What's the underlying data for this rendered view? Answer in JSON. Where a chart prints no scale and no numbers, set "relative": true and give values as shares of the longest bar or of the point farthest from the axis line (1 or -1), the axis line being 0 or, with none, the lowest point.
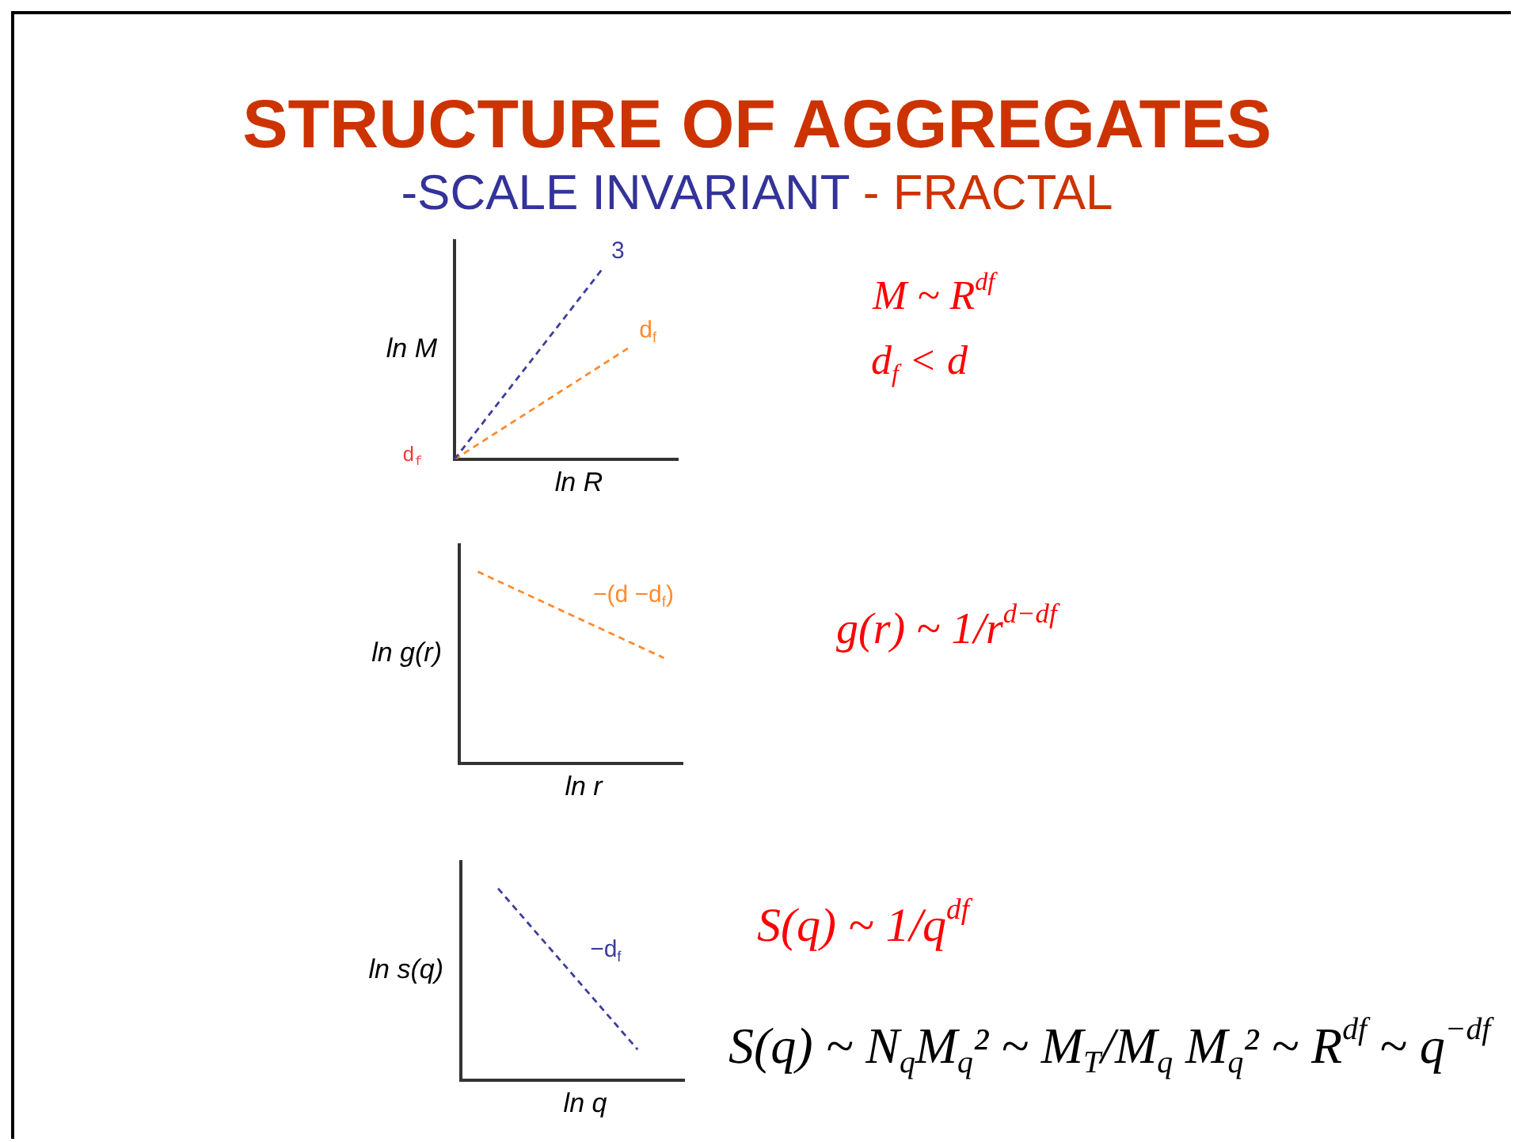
{
  "chart_data": [
    {
      "type": "line",
      "title": "STRUCTURE OF AGGREGATES",
      "subtitle": "-SCALE INVARIANT - FRACTAL",
      "xlabel": "ln R",
      "ylabel": "ln M",
      "relative": true,
      "line_style": "dashed",
      "marker": "none",
      "categories": [
        null,
        null,
        null,
        null,
        null,
        null,
        null,
        null,
        null,
        null,
        null,
        null,
        null,
        null,
        null,
        null,
        null,
        null,
        null,
        null,
        null,
        null,
        null,
        null,
        null
      ],
      "series": [
        {
          "name": "3",
          "color": "#3d3d9e",
          "values": [
            0,
            null,
            null,
            null,
            null,
            null,
            null,
            null,
            null,
            null,
            null,
            null,
            null,
            null,
            null,
            null,
            1,
            null,
            null,
            null,
            null,
            null,
            null,
            null,
            null
          ]
        },
        {
          "name": "d$_{f}$",
          "color": "#ff8a2e",
          "values": [
            0,
            null,
            null,
            null,
            null,
            null,
            null,
            null,
            null,
            null,
            null,
            null,
            null,
            null,
            null,
            null,
            null,
            null,
            null,
            0.59,
            null,
            null,
            null,
            null,
            null
          ]
        }
      ],
      "annotations": [
        "d$_{f}$",
        "M ~ R$^{df}$",
        "d$_{f}$ < d"
      ]
    },
    {
      "type": "line",
      "xlabel": "ln r",
      "ylabel": "ln g(r)",
      "relative": true,
      "line_style": "dashed",
      "marker": "none",
      "categories": [
        null,
        null,
        null,
        null,
        null,
        null,
        null,
        null,
        null,
        null,
        null,
        null,
        null,
        null,
        null,
        null,
        null,
        null,
        null,
        null,
        null,
        null,
        null,
        null,
        null
      ],
      "series": [
        {
          "name": "−(d −d$_{f}$)",
          "color": "#ff8a2e",
          "values": [
            null,
            null,
            1,
            null,
            null,
            null,
            null,
            null,
            null,
            null,
            null,
            null,
            null,
            null,
            null,
            null,
            null,
            null,
            null,
            null,
            null,
            null,
            0.55,
            null,
            null
          ]
        }
      ],
      "annotations": [
        "g(r) ~ 1/r$^{d−df}$"
      ]
    },
    {
      "type": "line",
      "xlabel": "ln q",
      "ylabel": "ln s(q)",
      "relative": true,
      "line_style": "dashed",
      "marker": "none",
      "categories": [
        null,
        null,
        null,
        null,
        null,
        null,
        null,
        null,
        null,
        null,
        null,
        null,
        null,
        null,
        null,
        null,
        null,
        null,
        null,
        null,
        null,
        null,
        null,
        null,
        null
      ],
      "series": [
        {
          "name": "−d$_{f}$",
          "color": "#3d3d9e",
          "values": [
            null,
            null,
            null,
            null,
            1,
            null,
            null,
            null,
            null,
            null,
            null,
            null,
            null,
            null,
            null,
            null,
            null,
            null,
            null,
            0.16,
            null,
            null,
            null,
            null,
            null
          ]
        }
      ],
      "annotations": [
        "S(q) ~ 1/q$^{df}$",
        "S(q) ~ N$_{q}$M$_{q}$² ~ M$_{T}$/M$_{q}$ M$_{q}$² ~ R$^{df}$ ~ q$^{−df}$"
      ]
    }
  ]
}
